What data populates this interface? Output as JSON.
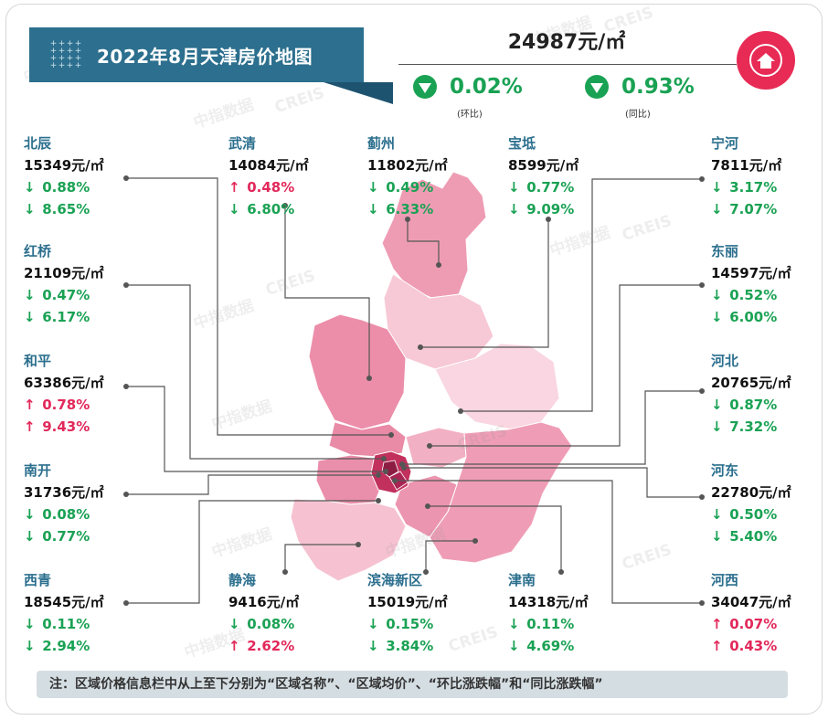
{
  "title": "2022年8月天津房价地图",
  "average": {
    "price": "24987元/㎡",
    "mom": {
      "value": "0.02%",
      "label": "(环比)",
      "direction": "down"
    },
    "yoy": {
      "value": "0.93%",
      "label": "(同比)",
      "direction": "down"
    }
  },
  "watermark": {
    "cn": "中指数据",
    "en": "CREIS"
  },
  "colors": {
    "accent": "#2c6f8e",
    "down": "#1aa254",
    "up": "#e2285a",
    "logo": "#e72b55"
  },
  "districts": [
    {
      "name": "北辰",
      "price": "15349元/㎡",
      "mom_arrow": "↓",
      "mom": "0.88%",
      "mom_dir": "down",
      "yoy_arrow": "↓",
      "yoy": "8.65%",
      "yoy_dir": "down"
    },
    {
      "name": "武清",
      "price": "14084元/㎡",
      "mom_arrow": "↑",
      "mom": "0.48%",
      "mom_dir": "up",
      "yoy_arrow": "↓",
      "yoy": "6.80%",
      "yoy_dir": "down"
    },
    {
      "name": "蓟州",
      "price": "11802元/㎡",
      "mom_arrow": "↓",
      "mom": "0.49%",
      "mom_dir": "down",
      "yoy_arrow": "↓",
      "yoy": "6.33%",
      "yoy_dir": "down"
    },
    {
      "name": "宝坻",
      "price": "8599元/㎡",
      "mom_arrow": "↓",
      "mom": "0.77%",
      "mom_dir": "down",
      "yoy_arrow": "↓",
      "yoy": "9.09%",
      "yoy_dir": "down"
    },
    {
      "name": "宁河",
      "price": "7811元/㎡",
      "mom_arrow": "↓",
      "mom": "3.17%",
      "mom_dir": "down",
      "yoy_arrow": "↓",
      "yoy": "7.07%",
      "yoy_dir": "down"
    },
    {
      "name": "红桥",
      "price": "21109元/㎡",
      "mom_arrow": "↓",
      "mom": "0.47%",
      "mom_dir": "down",
      "yoy_arrow": "↓",
      "yoy": "6.17%",
      "yoy_dir": "down"
    },
    {
      "name": "东丽",
      "price": "14597元/㎡",
      "mom_arrow": "↓",
      "mom": "0.52%",
      "mom_dir": "down",
      "yoy_arrow": "↓",
      "yoy": "6.00%",
      "yoy_dir": "down"
    },
    {
      "name": "和平",
      "price": "63386元/㎡",
      "mom_arrow": "↑",
      "mom": "0.78%",
      "mom_dir": "up",
      "yoy_arrow": "↑",
      "yoy": "9.43%",
      "yoy_dir": "up"
    },
    {
      "name": "河北",
      "price": "20765元/㎡",
      "mom_arrow": "↓",
      "mom": "0.87%",
      "mom_dir": "down",
      "yoy_arrow": "↓",
      "yoy": "7.32%",
      "yoy_dir": "down"
    },
    {
      "name": "南开",
      "price": "31736元/㎡",
      "mom_arrow": "↓",
      "mom": "0.08%",
      "mom_dir": "down",
      "yoy_arrow": "↓",
      "yoy": "0.77%",
      "yoy_dir": "down"
    },
    {
      "name": "河东",
      "price": "22780元/㎡",
      "mom_arrow": "↓",
      "mom": "0.50%",
      "mom_dir": "down",
      "yoy_arrow": "↓",
      "yoy": "5.40%",
      "yoy_dir": "down"
    },
    {
      "name": "西青",
      "price": "18545元/㎡",
      "mom_arrow": "↓",
      "mom": "0.11%",
      "mom_dir": "down",
      "yoy_arrow": "↓",
      "yoy": "2.94%",
      "yoy_dir": "down"
    },
    {
      "name": "静海",
      "price": "9416元/㎡",
      "mom_arrow": "↓",
      "mom": "0.08%",
      "mom_dir": "down",
      "yoy_arrow": "↑",
      "yoy": "2.62%",
      "yoy_dir": "up"
    },
    {
      "name": "滨海新区",
      "price": "15019元/㎡",
      "mom_arrow": "↓",
      "mom": "0.15%",
      "mom_dir": "down",
      "yoy_arrow": "↓",
      "yoy": "3.84%",
      "yoy_dir": "down"
    },
    {
      "name": "津南",
      "price": "14318元/㎡",
      "mom_arrow": "↓",
      "mom": "0.11%",
      "mom_dir": "down",
      "yoy_arrow": "↓",
      "yoy": "4.69%",
      "yoy_dir": "down"
    },
    {
      "name": "河西",
      "price": "34047元/㎡",
      "mom_arrow": "↑",
      "mom": "0.07%",
      "mom_dir": "up",
      "yoy_arrow": "↑",
      "yoy": "0.43%",
      "yoy_dir": "up"
    }
  ],
  "note": "注：区域价格信息栏中从上至下分别为“区域名称”、“区域均价”、“环比涨跌幅”和“同比涨跌幅”"
}
